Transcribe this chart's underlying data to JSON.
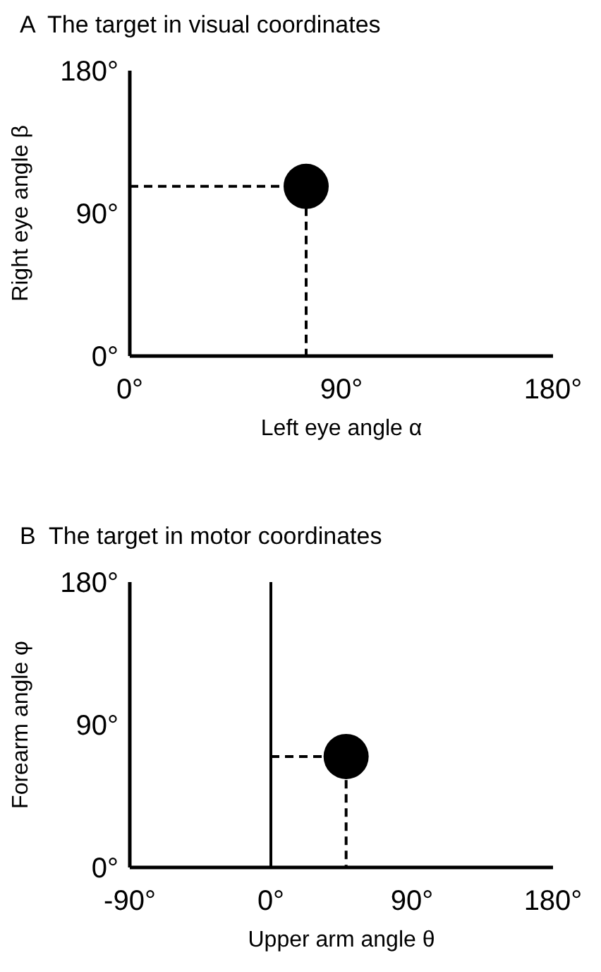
{
  "chart_data": [
    {
      "type": "scatter",
      "title": "A  The target in visual coordinates",
      "xlabel": "Left eye angle α",
      "ylabel": "Right eye angle β",
      "xlim": [
        0,
        180
      ],
      "xticks": [
        {
          "value": 0,
          "label": "0°"
        },
        {
          "value": 90,
          "label": "90°"
        },
        {
          "value": 180,
          "label": "180°"
        }
      ],
      "ylim": [
        0,
        180
      ],
      "yticks": [
        {
          "value": 0,
          "label": "0°"
        },
        {
          "value": 90,
          "label": "90°"
        },
        {
          "value": 180,
          "label": "180°"
        }
      ],
      "marker": "circle",
      "series": [
        {
          "type": "line",
          "color": "#000000",
          "line_style": "dashed",
          "marker": "none",
          "x": [
            0,
            75,
            75
          ],
          "values": [
            107,
            107,
            0
          ]
        },
        {
          "color": "#000000",
          "x": [
            75
          ],
          "values": [
            107
          ]
        }
      ]
    },
    {
      "type": "scatter",
      "title": "B  The target in motor coordinates",
      "xlabel": "Upper arm angle θ",
      "ylabel": "Forearm angle φ",
      "xlim": [
        -90,
        180
      ],
      "xticks": [
        {
          "value": -90,
          "label": "-90°"
        },
        {
          "value": 0,
          "label": "0°"
        },
        {
          "value": 90,
          "label": "90°"
        },
        {
          "value": 180,
          "label": "180°"
        }
      ],
      "ylim": [
        0,
        180
      ],
      "yticks": [
        {
          "value": 0,
          "label": "0°"
        },
        {
          "value": 90,
          "label": "90°"
        },
        {
          "value": 180,
          "label": "180°"
        }
      ],
      "marker": "circle",
      "ref_lines": [
        {
          "axis": "x",
          "value": 0,
          "color": "#000000",
          "line_style": "solid"
        }
      ],
      "series": [
        {
          "type": "line",
          "color": "#000000",
          "line_style": "dashed",
          "marker": "none",
          "x": [
            0,
            48,
            48
          ],
          "values": [
            70,
            70,
            0
          ]
        },
        {
          "color": "#000000",
          "x": [
            48
          ],
          "values": [
            70
          ]
        }
      ]
    }
  ]
}
